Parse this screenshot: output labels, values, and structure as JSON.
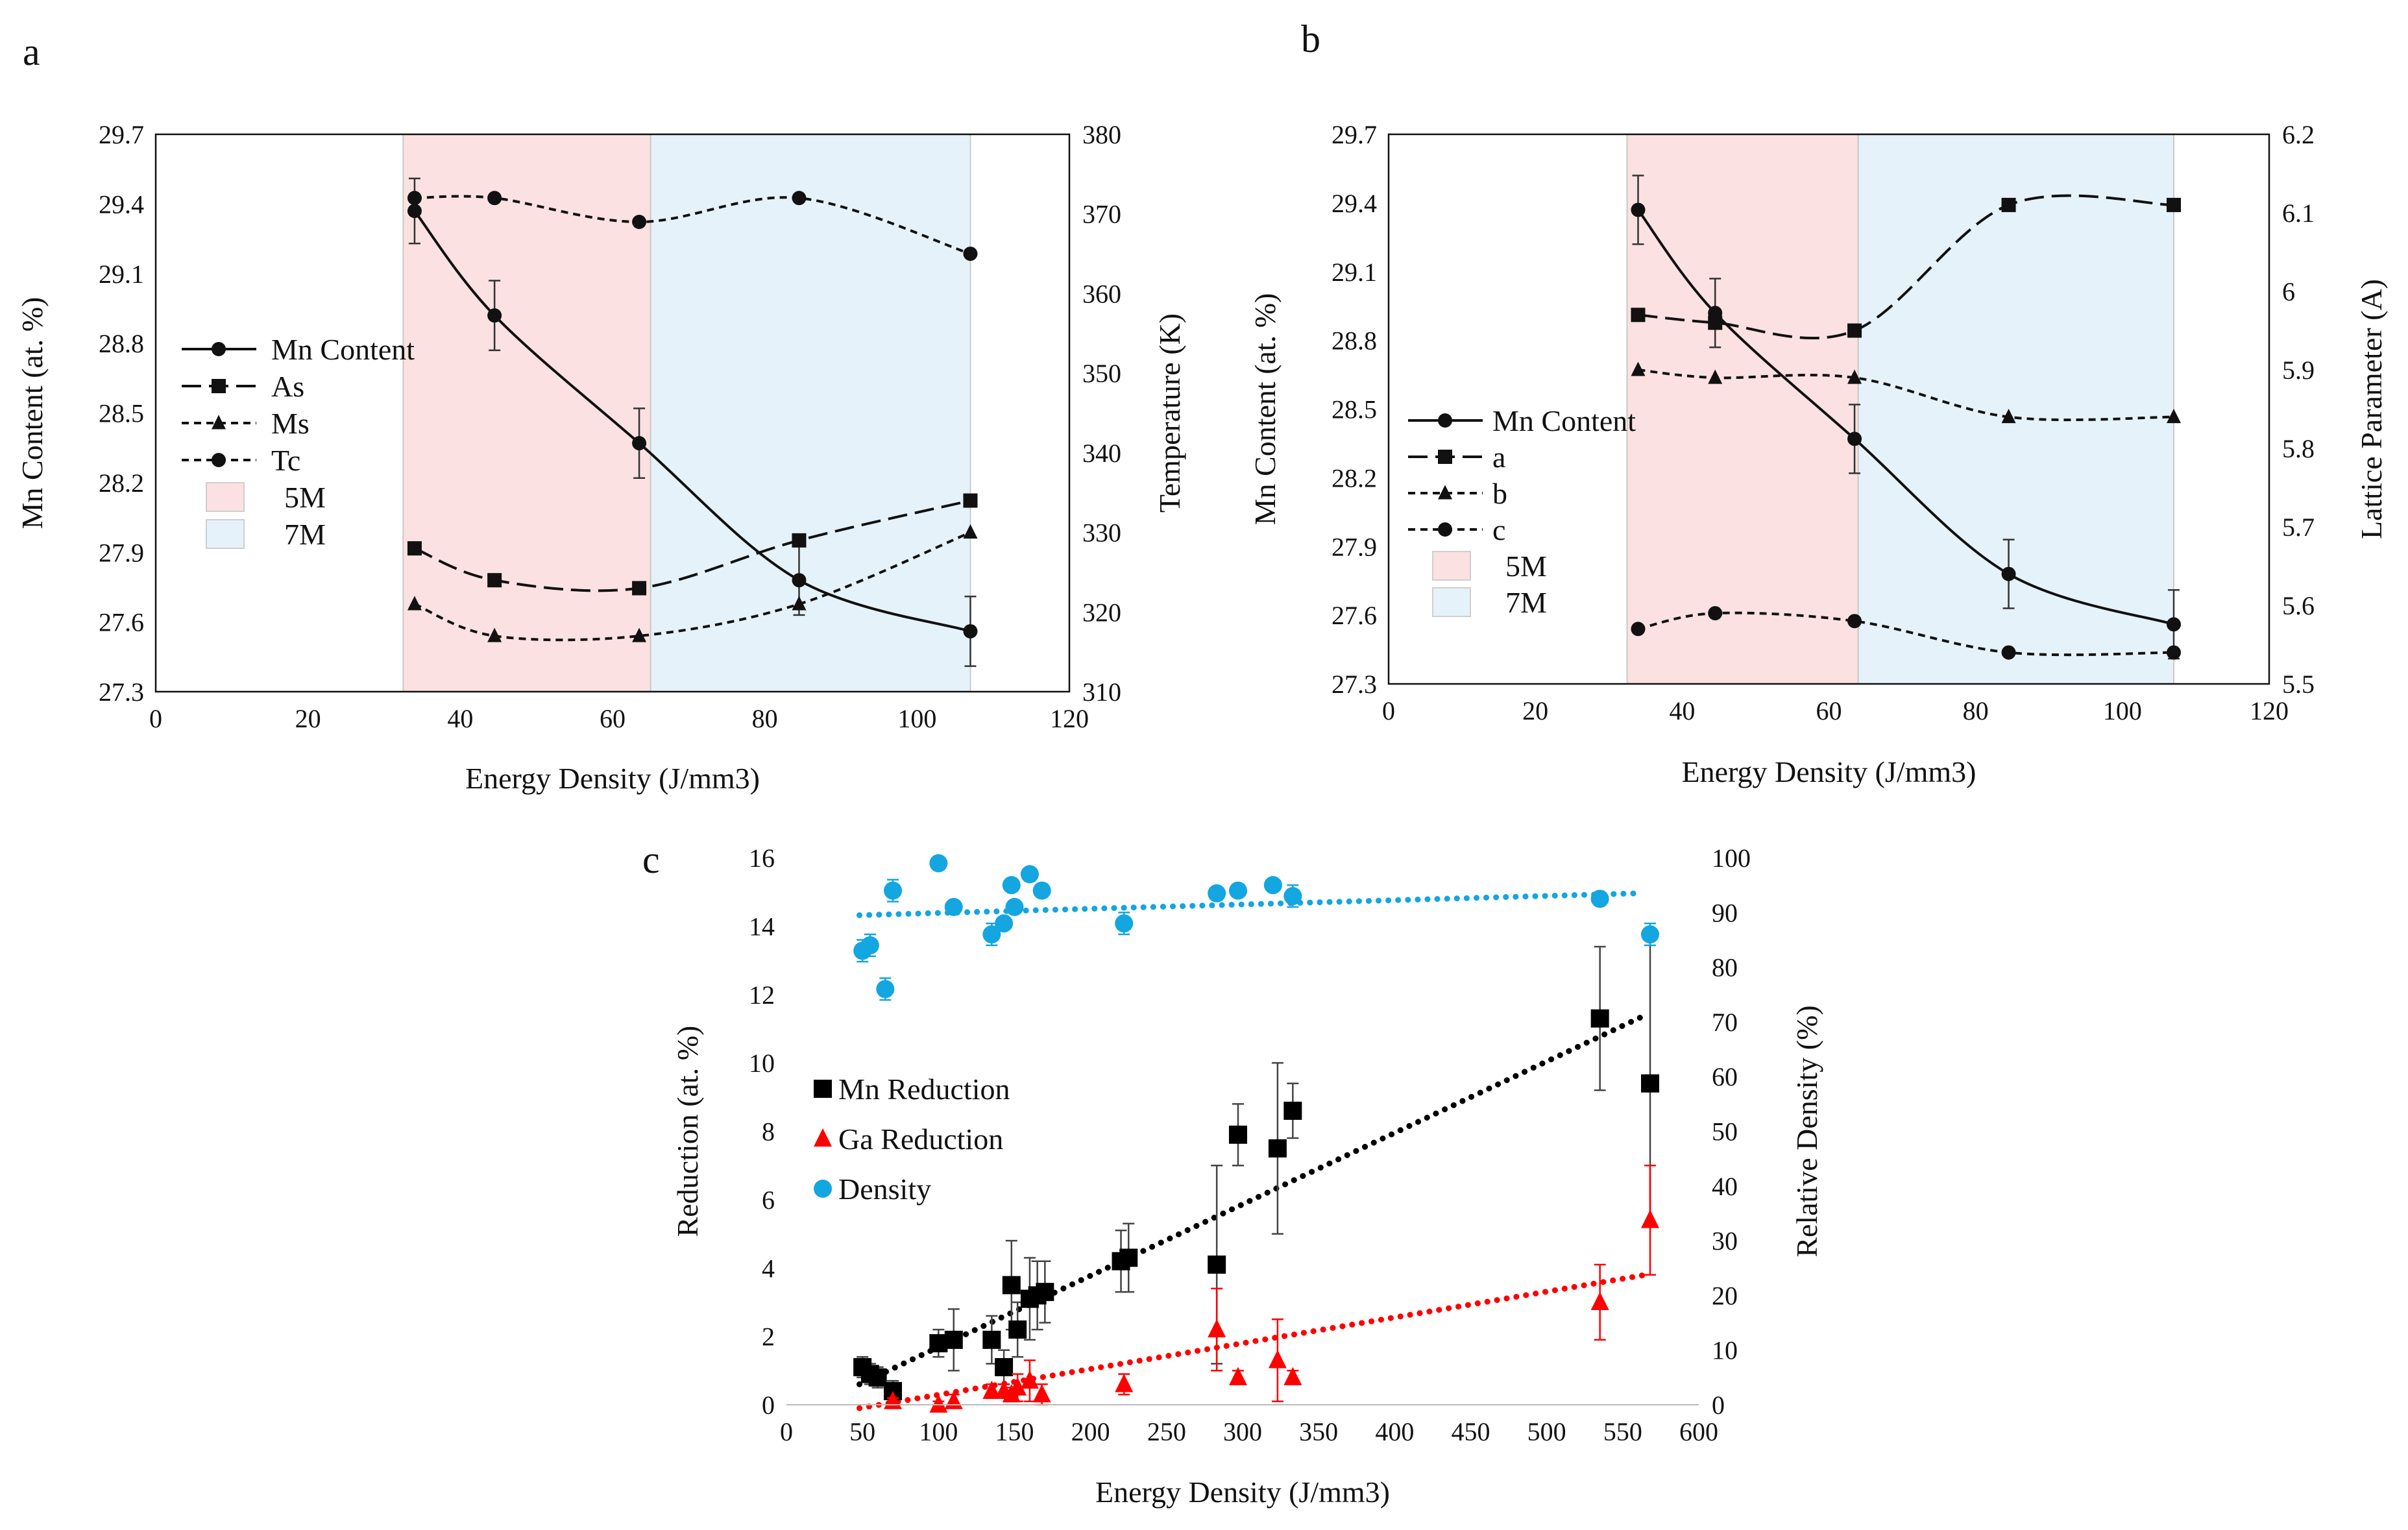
{
  "chart_data": [
    {
      "panel_label": "a",
      "type": "line",
      "xlabel": "Energy Density (J/mm3)",
      "ylabel": "Mn Content (at. %)",
      "y2label": "Temperature (K)",
      "xlim": [
        0,
        120
      ],
      "ylim": [
        27.3,
        29.7
      ],
      "y2lim": [
        310,
        380
      ],
      "xticks": [
        "0",
        "20",
        "40",
        "60",
        "80",
        "100",
        "120"
      ],
      "yticks": [
        "27.3",
        "27.6",
        "27.9",
        "28.2",
        "28.5",
        "28.8",
        "29.1",
        "29.4",
        "29.7"
      ],
      "y2ticks": [
        "310",
        "320",
        "330",
        "340",
        "350",
        "360",
        "370",
        "380"
      ],
      "grid": false,
      "regions": [
        {
          "name": "5M",
          "x0": 32.5,
          "x1": 65,
          "color": "#fbe1e1"
        },
        {
          "name": "7M",
          "x0": 65,
          "x1": 107,
          "color": "#e6f2f9"
        }
      ],
      "series": [
        {
          "name": "Mn Content",
          "axis": "left",
          "marker": "circle",
          "dash": "solid",
          "x": [
            34,
            44.5,
            63.5,
            84.5,
            107
          ],
          "y": [
            29.37,
            28.92,
            28.37,
            27.78,
            27.56
          ],
          "err": [
            0.14,
            0.15,
            0.15,
            0.15,
            0.15
          ]
        },
        {
          "name": "As",
          "axis": "right",
          "marker": "square",
          "dash": "long",
          "x": [
            34,
            44.5,
            63.5,
            84.5,
            107
          ],
          "y": [
            328,
            324,
            323,
            329,
            334
          ]
        },
        {
          "name": "Ms",
          "axis": "right",
          "marker": "triangle",
          "dash": "short",
          "x": [
            34,
            44.5,
            63.5,
            84.5,
            107
          ],
          "y": [
            321,
            317,
            317,
            321,
            330
          ]
        },
        {
          "name": "Tc",
          "axis": "right",
          "marker": "circle",
          "dash": "short",
          "x": [
            34,
            44.5,
            63.5,
            84.5,
            107
          ],
          "y": [
            372,
            372,
            369,
            372,
            365
          ]
        }
      ],
      "legend": [
        "Mn Content",
        "As",
        "Ms",
        "Tc",
        "5M",
        "7M"
      ],
      "legend_position": "left"
    },
    {
      "panel_label": "b",
      "type": "line",
      "xlabel": "Energy Density (J/mm3)",
      "ylabel": "Mn Content (at. %)",
      "y2label": "Lattice Parameter (A)",
      "xlim": [
        0,
        120
      ],
      "ylim": [
        27.3,
        29.7
      ],
      "y2lim": [
        5.5,
        6.2
      ],
      "xticks": [
        "0",
        "20",
        "40",
        "60",
        "80",
        "100",
        "120"
      ],
      "yticks": [
        "27.3",
        "27.6",
        "27.9",
        "28.2",
        "28.5",
        "28.8",
        "29.1",
        "29.4",
        "29.7"
      ],
      "y2ticks": [
        "5.5",
        "5.6",
        "5.7",
        "5.8",
        "5.9",
        "6",
        "6.1",
        "6.2"
      ],
      "grid": false,
      "regions": [
        {
          "name": "5M",
          "x0": 32.5,
          "x1": 64,
          "color": "#fbe1e1"
        },
        {
          "name": "7M",
          "x0": 64,
          "x1": 107,
          "color": "#e6f2f9"
        }
      ],
      "series": [
        {
          "name": "Mn Content",
          "axis": "left",
          "marker": "circle",
          "dash": "solid",
          "x": [
            34,
            44.5,
            63.5,
            84.5,
            107
          ],
          "y": [
            29.37,
            28.92,
            28.37,
            27.78,
            27.56
          ],
          "err": [
            0.15,
            0.15,
            0.15,
            0.15,
            0.15
          ]
        },
        {
          "name": "a",
          "axis": "right",
          "marker": "square",
          "dash": "long",
          "x": [
            34,
            44.5,
            63.5,
            84.5,
            107
          ],
          "y": [
            5.97,
            5.96,
            5.95,
            6.11,
            6.11
          ]
        },
        {
          "name": "b",
          "axis": "right",
          "marker": "triangle",
          "dash": "short",
          "x": [
            34,
            44.5,
            63.5,
            84.5,
            107
          ],
          "y": [
            5.9,
            5.89,
            5.89,
            5.84,
            5.84
          ]
        },
        {
          "name": "c",
          "axis": "right",
          "marker": "circle",
          "dash": "short",
          "x": [
            34,
            44.5,
            63.5,
            84.5,
            107
          ],
          "y": [
            5.57,
            5.59,
            5.58,
            5.54,
            5.54
          ]
        }
      ],
      "legend": [
        "Mn Content",
        "a",
        "b",
        "c",
        "5M",
        "7M"
      ],
      "legend_position": "left"
    },
    {
      "panel_label": "c",
      "type": "scatter",
      "xlabel": "Energy Density (J/mm3)",
      "ylabel": "Reduction (at. %)",
      "y2label": "Relative Density (%)",
      "xlim": [
        0,
        600
      ],
      "ylim": [
        0,
        16
      ],
      "y2lim": [
        0,
        100
      ],
      "xticks": [
        "0",
        "50",
        "100",
        "150",
        "200",
        "250",
        "300",
        "350",
        "400",
        "450",
        "500",
        "550",
        "600"
      ],
      "yticks": [
        "0",
        "2",
        "4",
        "6",
        "8",
        "10",
        "12",
        "14",
        "16"
      ],
      "y2ticks": [
        "0",
        "10",
        "20",
        "30",
        "40",
        "50",
        "60",
        "70",
        "80",
        "90",
        "100"
      ],
      "grid": false,
      "series": [
        {
          "name": "Mn Reduction",
          "axis": "left",
          "marker": "square",
          "color": "#000000",
          "x": [
            50,
            55,
            60,
            70,
            100,
            110,
            135,
            143,
            148,
            152,
            160,
            165,
            170,
            220,
            225,
            283,
            297,
            323,
            333,
            535,
            568
          ],
          "y": [
            1.1,
            0.9,
            0.8,
            0.4,
            1.8,
            1.9,
            1.9,
            1.1,
            3.5,
            2.2,
            3.1,
            3.2,
            3.3,
            4.2,
            4.3,
            4.1,
            7.9,
            7.5,
            8.6,
            11.3,
            9.4
          ],
          "err": [
            0.3,
            0.3,
            0.3,
            0.3,
            0.4,
            0.9,
            0.7,
            0.5,
            1.3,
            0.8,
            1.2,
            1.0,
            0.9,
            0.9,
            1.0,
            2.9,
            0.9,
            2.5,
            0.8,
            2.1,
            4.2
          ],
          "trend": {
            "x0": 48,
            "y0": 0.6,
            "x1": 565,
            "y1": 11.4
          }
        },
        {
          "name": "Ga Reduction",
          "axis": "left",
          "marker": "triangle",
          "color": "#ff0000",
          "x": [
            70,
            100,
            110,
            135,
            143,
            148,
            152,
            160,
            168,
            222,
            283,
            297,
            323,
            333,
            535,
            568
          ],
          "y": [
            0.1,
            0.0,
            0.1,
            0.4,
            0.4,
            0.3,
            0.5,
            0.7,
            0.3,
            0.6,
            2.2,
            0.8,
            1.3,
            0.8,
            3.0,
            5.4
          ],
          "err": [
            0.1,
            0.1,
            0.2,
            0.2,
            0.2,
            0.2,
            0.4,
            0.6,
            0.3,
            0.3,
            1.2,
            0.2,
            1.2,
            0.2,
            1.1,
            1.6
          ],
          "trend": {
            "x0": 48,
            "y0": -0.1,
            "x1": 565,
            "y1": 3.8
          }
        },
        {
          "name": "Density",
          "axis": "right",
          "marker": "circle",
          "color": "#13a6e0",
          "x": [
            50,
            55,
            65,
            70,
            110,
            135,
            143,
            148,
            150,
            160,
            168,
            222,
            283,
            297,
            320,
            333,
            535,
            568
          ],
          "y": [
            83,
            84,
            76,
            94,
            91,
            86,
            88,
            95,
            91,
            97,
            94,
            88,
            93.5,
            94,
            95,
            93,
            92.5,
            86
          ],
          "err": [
            2,
            2,
            2,
            2,
            1,
            2,
            1,
            1,
            1,
            1,
            1,
            2,
            1,
            1,
            1,
            2,
            1,
            2
          ],
          "trend": {
            "x0": 48,
            "y0": 89.5,
            "x1": 560,
            "y1": 93.5
          },
          "extra_points": [
            {
              "x": 100,
              "y": 99
            }
          ]
        }
      ],
      "legend": [
        "Mn Reduction",
        "Ga Reduction",
        "Density"
      ],
      "legend_position": "left"
    }
  ]
}
